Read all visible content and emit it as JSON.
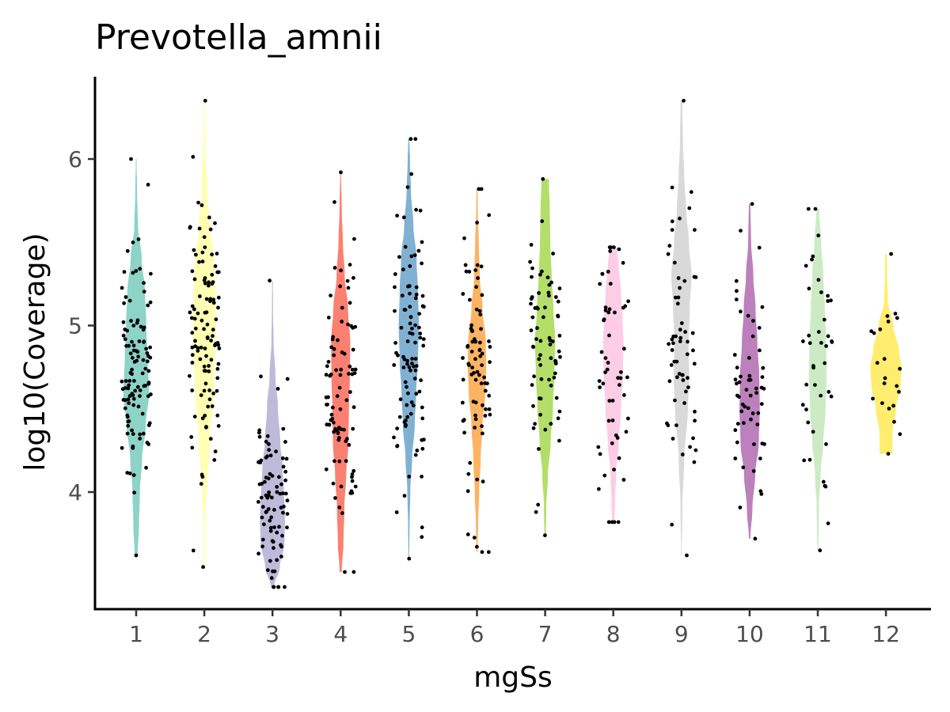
{
  "chart_data": {
    "type": "violin",
    "title": "Prevotella_amnii",
    "xlabel": "mgSs",
    "ylabel": "log10(Coverage)",
    "categories": [
      "1",
      "2",
      "3",
      "4",
      "5",
      "6",
      "7",
      "8",
      "9",
      "10",
      "11",
      "12"
    ],
    "x_tick_labels": [
      "1",
      "2",
      "3",
      "4",
      "5",
      "6",
      "7",
      "8",
      "9",
      "10",
      "11",
      "12"
    ],
    "y_ticks": [
      4,
      5,
      6
    ],
    "y_tick_labels": [
      "4",
      "5",
      "6"
    ],
    "ylim": [
      3.3,
      6.45
    ],
    "grid": false,
    "legend": "none",
    "groups": [
      {
        "name": "1",
        "color": "#8DD3C7",
        "min": 3.62,
        "max": 6.0,
        "density": [
          [
            3.62,
            0.08
          ],
          [
            3.8,
            0.15
          ],
          [
            4.0,
            0.2
          ],
          [
            4.2,
            0.32
          ],
          [
            4.4,
            0.52
          ],
          [
            4.6,
            0.7
          ],
          [
            4.8,
            0.62
          ],
          [
            5.0,
            0.55
          ],
          [
            5.2,
            0.48
          ],
          [
            5.4,
            0.3
          ],
          [
            5.6,
            0.1
          ],
          [
            5.8,
            0.05
          ],
          [
            6.0,
            0.02
          ]
        ],
        "n_points": 110,
        "points_mean": 4.75,
        "points_sd": 0.35
      },
      {
        "name": "2",
        "color": "#FFFFB3",
        "min": 3.55,
        "max": 6.35,
        "density": [
          [
            3.55,
            0.04
          ],
          [
            3.8,
            0.05
          ],
          [
            4.0,
            0.12
          ],
          [
            4.3,
            0.3
          ],
          [
            4.6,
            0.5
          ],
          [
            4.8,
            0.58
          ],
          [
            5.0,
            0.62
          ],
          [
            5.2,
            0.6
          ],
          [
            5.4,
            0.52
          ],
          [
            5.6,
            0.3
          ],
          [
            5.8,
            0.15
          ],
          [
            6.1,
            0.06
          ],
          [
            6.35,
            0.02
          ]
        ],
        "n_points": 110,
        "points_mean": 4.95,
        "points_sd": 0.4
      },
      {
        "name": "3",
        "color": "#BEBADA",
        "min": 3.43,
        "max": 5.27,
        "density": [
          [
            3.43,
            0.08
          ],
          [
            3.55,
            0.4
          ],
          [
            3.7,
            0.65
          ],
          [
            3.85,
            0.68
          ],
          [
            4.0,
            0.62
          ],
          [
            4.15,
            0.55
          ],
          [
            4.3,
            0.42
          ],
          [
            4.5,
            0.3
          ],
          [
            4.7,
            0.16
          ],
          [
            4.9,
            0.06
          ],
          [
            5.1,
            0.03
          ],
          [
            5.27,
            0.02
          ]
        ],
        "n_points": 85,
        "points_mean": 3.95,
        "points_sd": 0.3
      },
      {
        "name": "4",
        "color": "#FB8072",
        "min": 3.52,
        "max": 5.92,
        "density": [
          [
            3.52,
            0.06
          ],
          [
            3.7,
            0.15
          ],
          [
            3.9,
            0.2
          ],
          [
            4.1,
            0.3
          ],
          [
            4.3,
            0.42
          ],
          [
            4.5,
            0.45
          ],
          [
            4.7,
            0.5
          ],
          [
            4.9,
            0.52
          ],
          [
            5.1,
            0.4
          ],
          [
            5.3,
            0.22
          ],
          [
            5.5,
            0.12
          ],
          [
            5.7,
            0.06
          ],
          [
            5.92,
            0.02
          ]
        ],
        "n_points": 90,
        "points_mean": 4.55,
        "points_sd": 0.4
      },
      {
        "name": "5",
        "color": "#80B1D3",
        "min": 3.6,
        "max": 6.12,
        "density": [
          [
            3.6,
            0.02
          ],
          [
            3.8,
            0.04
          ],
          [
            4.0,
            0.08
          ],
          [
            4.2,
            0.18
          ],
          [
            4.4,
            0.32
          ],
          [
            4.6,
            0.4
          ],
          [
            4.8,
            0.5
          ],
          [
            5.0,
            0.55
          ],
          [
            5.2,
            0.5
          ],
          [
            5.4,
            0.42
          ],
          [
            5.6,
            0.25
          ],
          [
            5.8,
            0.12
          ],
          [
            6.0,
            0.06
          ],
          [
            6.12,
            0.03
          ]
        ],
        "n_points": 100,
        "points_mean": 4.9,
        "points_sd": 0.45
      },
      {
        "name": "6",
        "color": "#FDB462",
        "min": 3.64,
        "max": 5.82,
        "density": [
          [
            3.64,
            0.03
          ],
          [
            3.8,
            0.06
          ],
          [
            4.0,
            0.12
          ],
          [
            4.2,
            0.2
          ],
          [
            4.4,
            0.3
          ],
          [
            4.6,
            0.45
          ],
          [
            4.75,
            0.5
          ],
          [
            4.9,
            0.48
          ],
          [
            5.1,
            0.3
          ],
          [
            5.3,
            0.15
          ],
          [
            5.5,
            0.1
          ],
          [
            5.7,
            0.04
          ],
          [
            5.82,
            0.03
          ]
        ],
        "n_points": 80,
        "points_mean": 4.7,
        "points_sd": 0.4
      },
      {
        "name": "7",
        "color": "#B3DE69",
        "min": 3.74,
        "max": 5.88,
        "density": [
          [
            3.74,
            0.04
          ],
          [
            3.9,
            0.06
          ],
          [
            4.1,
            0.15
          ],
          [
            4.3,
            0.3
          ],
          [
            4.5,
            0.42
          ],
          [
            4.7,
            0.5
          ],
          [
            4.9,
            0.55
          ],
          [
            5.1,
            0.45
          ],
          [
            5.3,
            0.35
          ],
          [
            5.5,
            0.28
          ],
          [
            5.7,
            0.25
          ],
          [
            5.88,
            0.2
          ]
        ],
        "n_points": 70,
        "points_mean": 4.85,
        "points_sd": 0.4
      },
      {
        "name": "8",
        "color": "#FCCDE5",
        "min": 3.82,
        "max": 5.47,
        "density": [
          [
            3.82,
            0.06
          ],
          [
            3.95,
            0.1
          ],
          [
            4.1,
            0.15
          ],
          [
            4.3,
            0.3
          ],
          [
            4.5,
            0.42
          ],
          [
            4.7,
            0.52
          ],
          [
            4.9,
            0.55
          ],
          [
            5.05,
            0.5
          ],
          [
            5.2,
            0.42
          ],
          [
            5.35,
            0.3
          ],
          [
            5.47,
            0.2
          ]
        ],
        "n_points": 55,
        "points_mean": 4.7,
        "points_sd": 0.4
      },
      {
        "name": "9",
        "color": "#D9D9D9",
        "min": 3.62,
        "max": 6.35,
        "density": [
          [
            3.62,
            0.02
          ],
          [
            3.9,
            0.05
          ],
          [
            4.2,
            0.15
          ],
          [
            4.5,
            0.35
          ],
          [
            4.7,
            0.42
          ],
          [
            4.9,
            0.38
          ],
          [
            5.1,
            0.45
          ],
          [
            5.3,
            0.55
          ],
          [
            5.5,
            0.4
          ],
          [
            5.7,
            0.25
          ],
          [
            5.9,
            0.15
          ],
          [
            6.1,
            0.08
          ],
          [
            6.35,
            0.05
          ]
        ],
        "n_points": 60,
        "points_mean": 5.0,
        "points_sd": 0.45
      },
      {
        "name": "10",
        "color": "#BC80BD",
        "min": 3.72,
        "max": 5.73,
        "density": [
          [
            3.72,
            0.04
          ],
          [
            3.9,
            0.15
          ],
          [
            4.1,
            0.3
          ],
          [
            4.3,
            0.5
          ],
          [
            4.5,
            0.55
          ],
          [
            4.7,
            0.52
          ],
          [
            4.9,
            0.42
          ],
          [
            5.1,
            0.32
          ],
          [
            5.3,
            0.2
          ],
          [
            5.5,
            0.08
          ],
          [
            5.73,
            0.04
          ]
        ],
        "n_points": 55,
        "points_mean": 4.6,
        "points_sd": 0.4
      },
      {
        "name": "11",
        "color": "#CCEBC5",
        "min": 3.65,
        "max": 5.7,
        "density": [
          [
            3.65,
            0.03
          ],
          [
            3.9,
            0.06
          ],
          [
            4.1,
            0.15
          ],
          [
            4.3,
            0.3
          ],
          [
            4.5,
            0.42
          ],
          [
            4.7,
            0.48
          ],
          [
            4.9,
            0.45
          ],
          [
            5.1,
            0.38
          ],
          [
            5.3,
            0.3
          ],
          [
            5.5,
            0.18
          ],
          [
            5.7,
            0.08
          ]
        ],
        "n_points": 40,
        "points_mean": 4.75,
        "points_sd": 0.4
      },
      {
        "name": "12",
        "color": "#FFED6F",
        "min": 4.23,
        "max": 5.43,
        "density": [
          [
            4.23,
            0.35
          ],
          [
            4.35,
            0.35
          ],
          [
            4.5,
            0.55
          ],
          [
            4.65,
            0.8
          ],
          [
            4.75,
            0.85
          ],
          [
            4.85,
            0.7
          ],
          [
            5.0,
            0.4
          ],
          [
            5.15,
            0.1
          ],
          [
            5.3,
            0.06
          ],
          [
            5.43,
            0.05
          ]
        ],
        "n_points": 20,
        "points_mean": 4.7,
        "points_sd": 0.2
      }
    ]
  }
}
